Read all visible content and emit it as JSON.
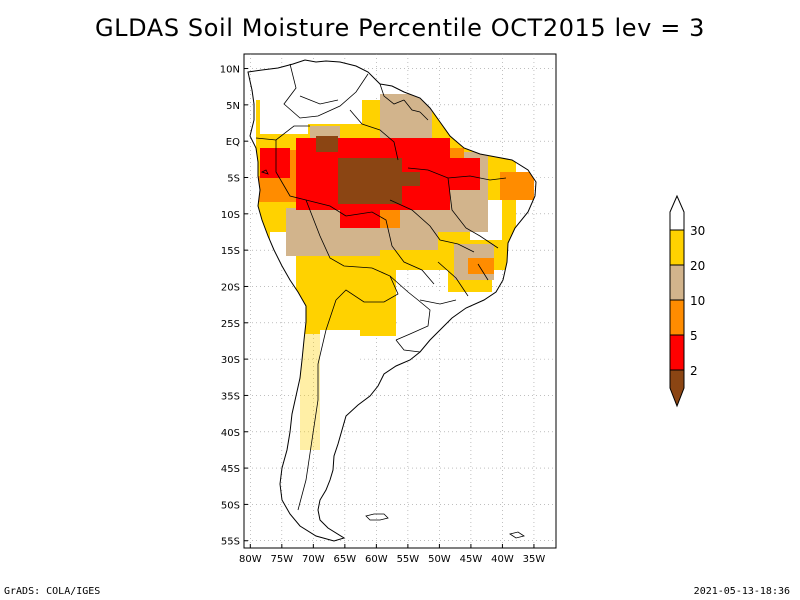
{
  "title": "GLDAS Soil Moisture Percentile OCT2015 lev = 3",
  "footer": {
    "left": "GrADS: COLA/IGES",
    "right": "2021-05-13-18:36"
  },
  "map": {
    "lat_labels": [
      "10N",
      "5N",
      "EQ",
      "5S",
      "10S",
      "15S",
      "20S",
      "25S",
      "30S",
      "35S",
      "40S",
      "45S",
      "50S",
      "55S"
    ],
    "lat_values": [
      10,
      5,
      0,
      -5,
      -10,
      -15,
      -20,
      -25,
      -30,
      -35,
      -40,
      -45,
      -50,
      -55
    ],
    "lon_labels": [
      "80W",
      "75W",
      "70W",
      "65W",
      "60W",
      "55W",
      "50W",
      "45W",
      "40W",
      "35W"
    ],
    "lon_values": [
      -80,
      -75,
      -70,
      -65,
      -60,
      -55,
      -50,
      -45,
      -40,
      -35
    ]
  },
  "legend": {
    "labels": [
      "30",
      "20",
      "10",
      "5",
      "2"
    ],
    "colors": {
      "above30": "#ffffff",
      "c20_30": "#ffd200",
      "c10_20": "#d2b48c",
      "c5_10": "#ff8c00",
      "c2_5": "#ff0000",
      "below2": "#8b4513"
    }
  }
}
